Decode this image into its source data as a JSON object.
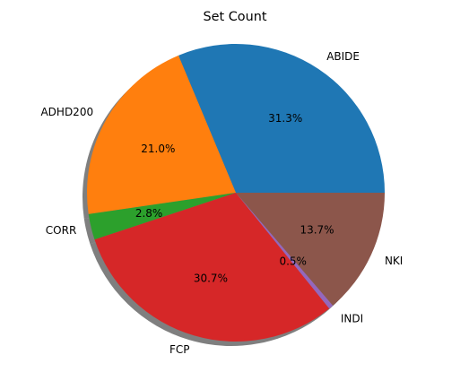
{
  "chart_data": {
    "type": "pie",
    "title": "Set Count",
    "categories": [
      "ABIDE",
      "ADHD200",
      "CORR",
      "FCP",
      "INDI",
      "NKI"
    ],
    "values": [
      31.3,
      21.0,
      2.8,
      30.7,
      0.5,
      13.7
    ],
    "percent_labels": [
      "31.3%",
      "21.0%",
      "2.8%",
      "30.7%",
      "0.5%",
      "13.7%"
    ],
    "colors": [
      "#1f77b4",
      "#ff7f0e",
      "#2ca02c",
      "#d62728",
      "#9467bd",
      "#8c564b"
    ],
    "start_angle_deg": 0,
    "direction": "counterclockwise",
    "shadow": true
  }
}
